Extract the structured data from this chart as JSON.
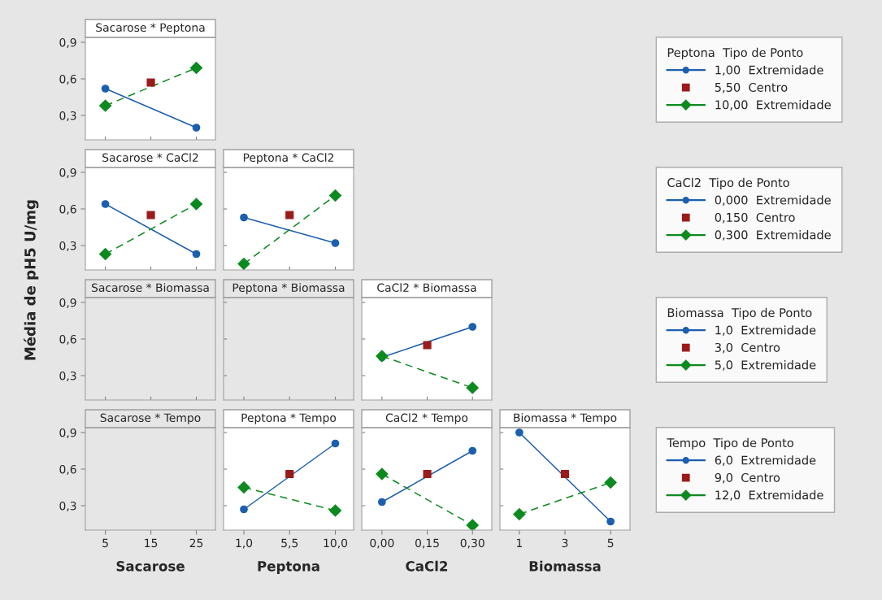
{
  "chart_data": [
    {
      "type": "line",
      "title": "Sacarose * Peptona",
      "xlim": [
        0.6,
        29.2
      ],
      "xticks": [
        {
          "value": 5,
          "label": null
        },
        {
          "value": 15,
          "label": null
        },
        {
          "value": 25,
          "label": null
        }
      ],
      "ylim": [
        0.1,
        0.94
      ],
      "yticks": [
        {
          "value": 0.3,
          "label": "0,3"
        },
        {
          "value": 0.6,
          "label": "0,6"
        },
        {
          "value": 0.9,
          "label": "0,9"
        }
      ],
      "tick_labels": "y",
      "legend": "right",
      "legend_title": "Peptona  Tipo de Ponto",
      "series": [
        {
          "name": "1,00  Extremidade",
          "color": "#1c5fae",
          "x": [
            5,
            25
          ],
          "values": [
            0.52,
            0.2
          ],
          "marker": "circle",
          "line_style": "solid"
        },
        {
          "name": "5,50  Centro",
          "type": "scatter",
          "color": "#9b1a1a",
          "x": [
            15
          ],
          "values": [
            0.57
          ],
          "marker": "square"
        },
        {
          "name": "10,00  Extremidade",
          "color": "#0d8a1f",
          "x": [
            5,
            25
          ],
          "values": [
            0.38,
            0.69
          ],
          "marker": "diamond",
          "line_style": "dashed"
        }
      ]
    },
    {
      "type": "line",
      "title": "Sacarose * CaCl2",
      "ylabel": "Média de pH5 U/mg",
      "xlim": [
        0.6,
        29.2
      ],
      "xticks": [
        {
          "value": 5,
          "label": null
        },
        {
          "value": 15,
          "label": null
        },
        {
          "value": 25,
          "label": null
        }
      ],
      "ylim": [
        0.1,
        0.94
      ],
      "yticks": [
        {
          "value": 0.3,
          "label": "0,3"
        },
        {
          "value": 0.6,
          "label": "0,6"
        },
        {
          "value": 0.9,
          "label": "0,9"
        }
      ],
      "tick_labels": "y",
      "legend": "right",
      "legend_title": "CaCl2  Tipo de Ponto",
      "series": [
        {
          "name": "0,000  Extremidade",
          "color": "#1c5fae",
          "x": [
            5,
            25
          ],
          "values": [
            0.64,
            0.23
          ],
          "marker": "circle",
          "line_style": "solid"
        },
        {
          "name": "0,150  Centro",
          "type": "scatter",
          "color": "#9b1a1a",
          "x": [
            15
          ],
          "values": [
            0.55
          ],
          "marker": "square"
        },
        {
          "name": "0,300  Extremidade",
          "color": "#0d8a1f",
          "x": [
            5,
            25
          ],
          "values": [
            0.23,
            0.64
          ],
          "marker": "diamond",
          "line_style": "dashed"
        }
      ]
    },
    {
      "type": "line",
      "title": "Peptona * CaCl2",
      "xlim": [
        -1.0,
        11.8
      ],
      "xticks": [
        {
          "value": 1,
          "label": null
        },
        {
          "value": 5.5,
          "label": null
        },
        {
          "value": 10,
          "label": null
        }
      ],
      "ylim": [
        0.1,
        0.94
      ],
      "yticks": [
        {
          "value": 0.3,
          "label": null
        },
        {
          "value": 0.6,
          "label": null
        },
        {
          "value": 0.9,
          "label": null
        }
      ],
      "tick_labels": false,
      "series": [
        {
          "color": "#1c5fae",
          "x": [
            1,
            10
          ],
          "values": [
            0.53,
            0.32
          ],
          "marker": "circle",
          "line_style": "solid"
        },
        {
          "type": "scatter",
          "color": "#9b1a1a",
          "x": [
            5.5
          ],
          "values": [
            0.55
          ],
          "marker": "square"
        },
        {
          "color": "#0d8a1f",
          "x": [
            1,
            10
          ],
          "values": [
            0.15,
            0.71
          ],
          "marker": "diamond",
          "line_style": "dashed"
        }
      ]
    },
    {
      "type": "line",
      "title": "Sacarose * Biomassa",
      "xlim": [
        0.6,
        29.2
      ],
      "xticks": [
        {
          "value": 5,
          "label": null
        },
        {
          "value": 15,
          "label": null
        },
        {
          "value": 25,
          "label": null
        }
      ],
      "ylim": [
        0.1,
        0.94
      ],
      "yticks": [
        {
          "value": 0.3,
          "label": "0,3"
        },
        {
          "value": 0.6,
          "label": "0,6"
        },
        {
          "value": 0.9,
          "label": "0,9"
        }
      ],
      "tick_labels": "y"
    },
    {
      "type": "line",
      "title": "Peptona * Biomassa",
      "xlim": [
        -1.0,
        11.8
      ],
      "xticks": [
        {
          "value": 1,
          "label": null
        },
        {
          "value": 5.5,
          "label": null
        },
        {
          "value": 10,
          "label": null
        }
      ],
      "ylim": [
        0.1,
        0.94
      ],
      "yticks": [
        {
          "value": 0.3,
          "label": null
        },
        {
          "value": 0.6,
          "label": null
        },
        {
          "value": 0.9,
          "label": null
        }
      ],
      "tick_labels": false
    },
    {
      "type": "line",
      "title": "CaCl2 * Biomassa",
      "xlim": [
        -0.067,
        0.364
      ],
      "xticks": [
        {
          "value": 0,
          "label": null
        },
        {
          "value": 0.15,
          "label": null
        },
        {
          "value": 0.3,
          "label": null
        }
      ],
      "ylim": [
        0.1,
        0.94
      ],
      "yticks": [
        {
          "value": 0.3,
          "label": null
        },
        {
          "value": 0.6,
          "label": null
        },
        {
          "value": 0.9,
          "label": null
        }
      ],
      "tick_labels": false,
      "legend": "right",
      "legend_title": "Biomassa  Tipo de Ponto",
      "series": [
        {
          "name": "1,0  Extremidade",
          "color": "#1c5fae",
          "x": [
            0,
            0.3
          ],
          "values": [
            0.45,
            0.7
          ],
          "marker": "circle",
          "line_style": "solid"
        },
        {
          "name": "3,0  Centro",
          "type": "scatter",
          "color": "#9b1a1a",
          "x": [
            0.15
          ],
          "values": [
            0.55
          ],
          "marker": "square"
        },
        {
          "name": "5,0  Extremidade",
          "color": "#0d8a1f",
          "x": [
            0,
            0.3
          ],
          "values": [
            0.46,
            0.2
          ],
          "marker": "diamond",
          "line_style": "dashed"
        }
      ]
    },
    {
      "type": "line",
      "title": "Sacarose * Tempo",
      "xlabel": "Sacarose",
      "xlim": [
        0.6,
        29.2
      ],
      "xticks": [
        5,
        15,
        25
      ],
      "ylim": [
        0.1,
        0.94
      ],
      "yticks": [
        {
          "value": 0.3,
          "label": "0,3"
        },
        {
          "value": 0.6,
          "label": "0,6"
        },
        {
          "value": 0.9,
          "label": "0,9"
        }
      ]
    },
    {
      "type": "line",
      "title": "Peptona * Tempo",
      "xlabel": "Peptona",
      "xlim": [
        -1.0,
        11.8
      ],
      "xticks": [
        {
          "value": 1,
          "label": "1,0"
        },
        {
          "value": 5.5,
          "label": "5,5"
        },
        {
          "value": 10,
          "label": "10,0"
        }
      ],
      "ylim": [
        0.1,
        0.94
      ],
      "yticks": [
        {
          "value": 0.3,
          "label": null
        },
        {
          "value": 0.6,
          "label": null
        },
        {
          "value": 0.9,
          "label": null
        }
      ],
      "tick_labels": "x",
      "legend": "right",
      "legend_title": "Tempo  Tipo de Ponto",
      "series": [
        {
          "name": "6,0  Extremidade",
          "color": "#1c5fae",
          "x": [
            1,
            10
          ],
          "values": [
            0.27,
            0.81
          ],
          "marker": "circle",
          "line_style": "solid"
        },
        {
          "name": "9,0  Centro",
          "type": "scatter",
          "color": "#9b1a1a",
          "x": [
            5.5
          ],
          "values": [
            0.56
          ],
          "marker": "square"
        },
        {
          "name": "12,0  Extremidade",
          "color": "#0d8a1f",
          "x": [
            1,
            10
          ],
          "values": [
            0.45,
            0.26
          ],
          "marker": "diamond",
          "line_style": "dashed"
        }
      ]
    },
    {
      "type": "line",
      "title": "CaCl2 * Tempo",
      "xlabel": "CaCl2",
      "xlim": [
        -0.067,
        0.364
      ],
      "xticks": [
        {
          "value": 0,
          "label": "0,00"
        },
        {
          "value": 0.15,
          "label": "0,15"
        },
        {
          "value": 0.3,
          "label": "0,30"
        }
      ],
      "ylim": [
        0.1,
        0.94
      ],
      "yticks": [
        {
          "value": 0.3,
          "label": null
        },
        {
          "value": 0.6,
          "label": null
        },
        {
          "value": 0.9,
          "label": null
        }
      ],
      "tick_labels": "x",
      "series": [
        {
          "color": "#1c5fae",
          "x": [
            0,
            0.3
          ],
          "values": [
            0.33,
            0.75
          ],
          "marker": "circle",
          "line_style": "solid"
        },
        {
          "type": "scatter",
          "color": "#9b1a1a",
          "x": [
            0.15
          ],
          "values": [
            0.56
          ],
          "marker": "square"
        },
        {
          "color": "#0d8a1f",
          "x": [
            0,
            0.3
          ],
          "values": [
            0.56,
            0.14
          ],
          "marker": "diamond",
          "line_style": "dashed"
        }
      ]
    },
    {
      "type": "line",
      "title": "Biomassa * Tempo",
      "xlabel": "Biomassa",
      "xlim": [
        0.15,
        5.85
      ],
      "xticks": [
        1,
        3,
        5
      ],
      "ylim": [
        0.1,
        0.94
      ],
      "yticks": [
        {
          "value": 0.3,
          "label": null
        },
        {
          "value": 0.6,
          "label": null
        },
        {
          "value": 0.9,
          "label": null
        }
      ],
      "tick_labels": "x",
      "series": [
        {
          "color": "#1c5fae",
          "x": [
            1,
            5
          ],
          "values": [
            0.9,
            0.17
          ],
          "marker": "circle",
          "line_style": "solid"
        },
        {
          "type": "scatter",
          "color": "#9b1a1a",
          "x": [
            3
          ],
          "values": [
            0.56
          ],
          "marker": "square"
        },
        {
          "color": "#0d8a1f",
          "x": [
            1,
            5
          ],
          "values": [
            0.23,
            0.49
          ],
          "marker": "diamond",
          "line_style": "dashed"
        }
      ]
    }
  ]
}
